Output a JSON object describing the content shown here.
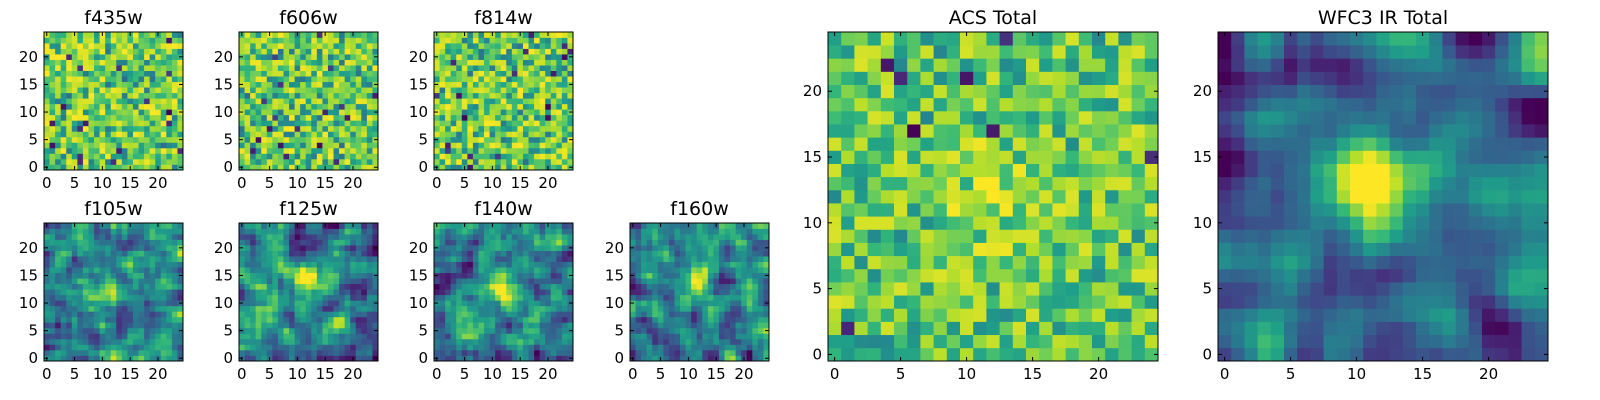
{
  "chart_data": {
    "type": "heatmap",
    "colormap": "viridis",
    "grid": false,
    "image_shape": [
      25,
      25
    ],
    "panels": [
      {
        "key": "f435w",
        "title": "f435w",
        "xticks": [
          0,
          5,
          10,
          15,
          20
        ],
        "yticks": [
          0,
          5,
          10,
          15,
          20
        ],
        "pattern": "noise",
        "seed": 11
      },
      {
        "key": "f606w",
        "title": "f606w",
        "xticks": [
          0,
          5,
          10,
          15,
          20
        ],
        "yticks": [
          0,
          5,
          10,
          15,
          20
        ],
        "pattern": "noise",
        "seed": 23
      },
      {
        "key": "f814w",
        "title": "f814w",
        "xticks": [
          0,
          5,
          10,
          15,
          20
        ],
        "yticks": [
          0,
          5,
          10,
          15,
          20
        ],
        "pattern": "noise",
        "seed": 37
      },
      {
        "key": "f105w",
        "title": "f105w",
        "xticks": [
          0,
          5,
          10,
          15,
          20
        ],
        "yticks": [
          0,
          5,
          10,
          15,
          20
        ],
        "pattern": "source",
        "seed": 41,
        "source_center": [
          11,
          13
        ],
        "source_strength": 0.35
      },
      {
        "key": "f125w",
        "title": "f125w",
        "xticks": [
          0,
          5,
          10,
          15,
          20
        ],
        "yticks": [
          0,
          5,
          10,
          15,
          20
        ],
        "pattern": "source",
        "seed": 53,
        "source_center": [
          12,
          14
        ],
        "source_strength": 0.4
      },
      {
        "key": "f140w",
        "title": "f140w",
        "xticks": [
          0,
          5,
          10,
          15,
          20
        ],
        "yticks": [
          0,
          5,
          10,
          15,
          20
        ],
        "pattern": "source",
        "seed": 67,
        "source_center": [
          11,
          13
        ],
        "source_strength": 0.5
      },
      {
        "key": "f160w",
        "title": "f160w",
        "xticks": [
          0,
          5,
          10,
          15,
          20
        ],
        "yticks": [
          0,
          5,
          10,
          15,
          20
        ],
        "pattern": "source",
        "seed": 79,
        "source_center": [
          11,
          14
        ],
        "source_strength": 0.5
      },
      {
        "key": "acs_total",
        "title": "ACS Total",
        "xticks": [
          0,
          5,
          10,
          15,
          20
        ],
        "yticks": [
          0,
          5,
          10,
          15,
          20
        ],
        "pattern": "noise_soft",
        "seed": 97,
        "source_center": [
          12,
          12
        ],
        "source_strength": 0.15
      },
      {
        "key": "wfc3_ir_total",
        "title": "WFC3 IR Total",
        "xticks": [
          0,
          5,
          10,
          15,
          20
        ],
        "yticks": [
          0,
          5,
          10,
          15,
          20
        ],
        "pattern": "smooth_source",
        "seed": 113,
        "source_center": [
          11,
          13
        ],
        "source_strength": 0.75
      }
    ],
    "colors": {
      "viridis": [
        "#440154",
        "#482878",
        "#3e4989",
        "#31688e",
        "#26828e",
        "#1f9e89",
        "#35b779",
        "#6ece58",
        "#b5de2b",
        "#fde725"
      ]
    }
  }
}
